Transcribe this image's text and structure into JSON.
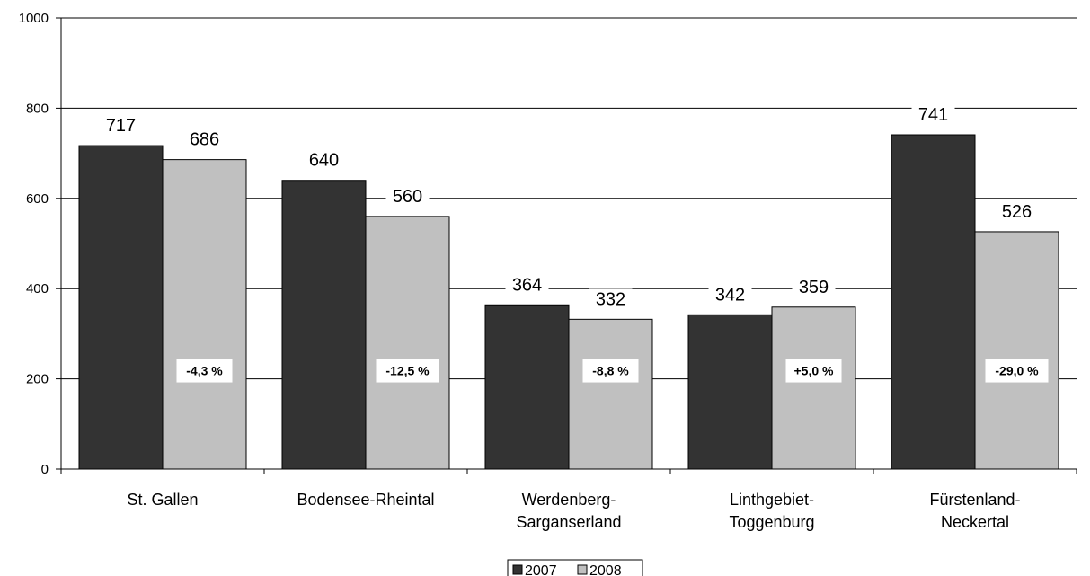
{
  "chart_data": {
    "type": "bar",
    "categories": [
      [
        "St. Gallen"
      ],
      [
        "Bodensee-Rheintal"
      ],
      [
        "Werdenberg-",
        "Sarganserland"
      ],
      [
        "Linthgebiet-",
        "Toggenburg"
      ],
      [
        "Fürstenland-",
        "Neckertal"
      ]
    ],
    "series": [
      {
        "name": "2007",
        "values": [
          717,
          640,
          364,
          342,
          741
        ],
        "color": "#333333"
      },
      {
        "name": "2008",
        "values": [
          686,
          560,
          332,
          359,
          526
        ],
        "color": "#c0c0c0"
      }
    ],
    "value_labels": [
      [
        "717",
        "640",
        "364",
        "342",
        "741"
      ],
      [
        "686",
        "560",
        "332",
        "359",
        "526"
      ]
    ],
    "change_labels": [
      "-4,3 %",
      "-12,5 %",
      "-8,8 %",
      "+5,0 %",
      "-29,0 %"
    ],
    "y_ticks": [
      "0",
      "200",
      "400",
      "600",
      "800",
      "1000"
    ],
    "ylim": [
      0,
      1000
    ],
    "grid": true,
    "legend_position": "bottom-center"
  }
}
